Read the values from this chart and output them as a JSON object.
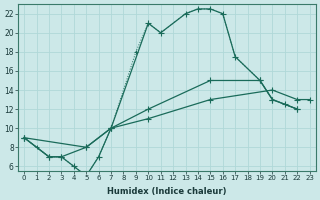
{
  "xlabel": "Humidex (Indice chaleur)",
  "ylabel": "",
  "xlim": [
    -0.5,
    23.5
  ],
  "ylim": [
    5.5,
    23
  ],
  "xticks": [
    0,
    1,
    2,
    3,
    4,
    5,
    6,
    7,
    8,
    9,
    10,
    11,
    12,
    13,
    14,
    15,
    16,
    17,
    18,
    19,
    20,
    21,
    22,
    23
  ],
  "yticks": [
    6,
    8,
    10,
    12,
    14,
    16,
    18,
    20,
    22
  ],
  "bg_color": "#cce8e8",
  "line_color": "#1a6b5a",
  "grid_color": "#b0d8d8",
  "series": [
    {
      "x": [
        0,
        2,
        3,
        4,
        5,
        6,
        7,
        10,
        11,
        13,
        14,
        15,
        16,
        17,
        19,
        20,
        21,
        22
      ],
      "y": [
        9,
        7,
        7,
        6,
        5,
        7,
        10,
        21,
        20,
        22,
        22.5,
        22.5,
        22,
        17.5,
        15,
        13,
        12.5,
        12
      ]
    },
    {
      "x": [
        0,
        1,
        2,
        3,
        4,
        5,
        6,
        7,
        9,
        10,
        11,
        13,
        14,
        15,
        16,
        17,
        19,
        20,
        21,
        22
      ],
      "y": [
        9,
        8,
        7,
        7,
        6,
        5,
        7,
        10,
        18,
        21,
        20,
        22,
        22.5,
        22.5,
        22,
        17.5,
        15,
        13,
        12.5,
        12
      ]
    },
    {
      "x": [
        0,
        5,
        7,
        10,
        15,
        19,
        20,
        22
      ],
      "y": [
        9,
        8,
        10,
        12,
        15,
        15,
        13,
        12
      ]
    },
    {
      "x": [
        0,
        2,
        3,
        5,
        7,
        10,
        15,
        20,
        22,
        23
      ],
      "y": [
        9,
        7,
        7,
        8,
        10,
        11,
        13,
        14,
        13,
        13
      ]
    }
  ]
}
